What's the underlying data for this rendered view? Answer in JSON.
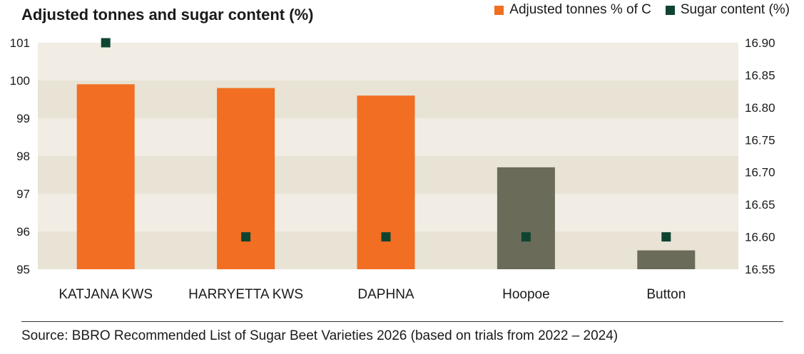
{
  "colors": {
    "bar_primary": "#f26e22",
    "bar_secondary": "#6b6b5a",
    "marker": "#0f4431",
    "band_light": "#f1ede4",
    "band_dark": "#e8e3d5"
  },
  "source": "Source: BBRO Recommended List of Sugar Beet Varieties 2026 (based on trials from 2022 – 2024)",
  "chart_data": {
    "type": "bar",
    "title": "Adjusted tonnes and sugar content (%)",
    "categories": [
      "KATJANA KWS",
      "HARRYETTA KWS",
      "DAPHNA",
      "Hoopoe",
      "Button"
    ],
    "series": [
      {
        "name": "Adjusted tonnes % of C",
        "type": "bar",
        "axis": "left",
        "values": [
          99.9,
          99.8,
          99.6,
          97.7,
          95.5
        ],
        "colors": [
          "#f26e22",
          "#f26e22",
          "#f26e22",
          "#6b6b5a",
          "#6b6b5a"
        ]
      },
      {
        "name": "Sugar content (%)",
        "type": "marker",
        "axis": "right",
        "values": [
          16.9,
          16.6,
          16.6,
          16.6,
          16.6
        ]
      }
    ],
    "y_left": {
      "min": 95,
      "max": 101,
      "ticks": [
        "95",
        "96",
        "97",
        "98",
        "99",
        "100",
        "101"
      ]
    },
    "y_right": {
      "min": 16.55,
      "max": 16.9,
      "ticks": [
        "16.55",
        "16.60",
        "16.65",
        "16.70",
        "16.75",
        "16.80",
        "16.85",
        "16.90"
      ]
    },
    "legend": "top-right",
    "grid": false
  }
}
